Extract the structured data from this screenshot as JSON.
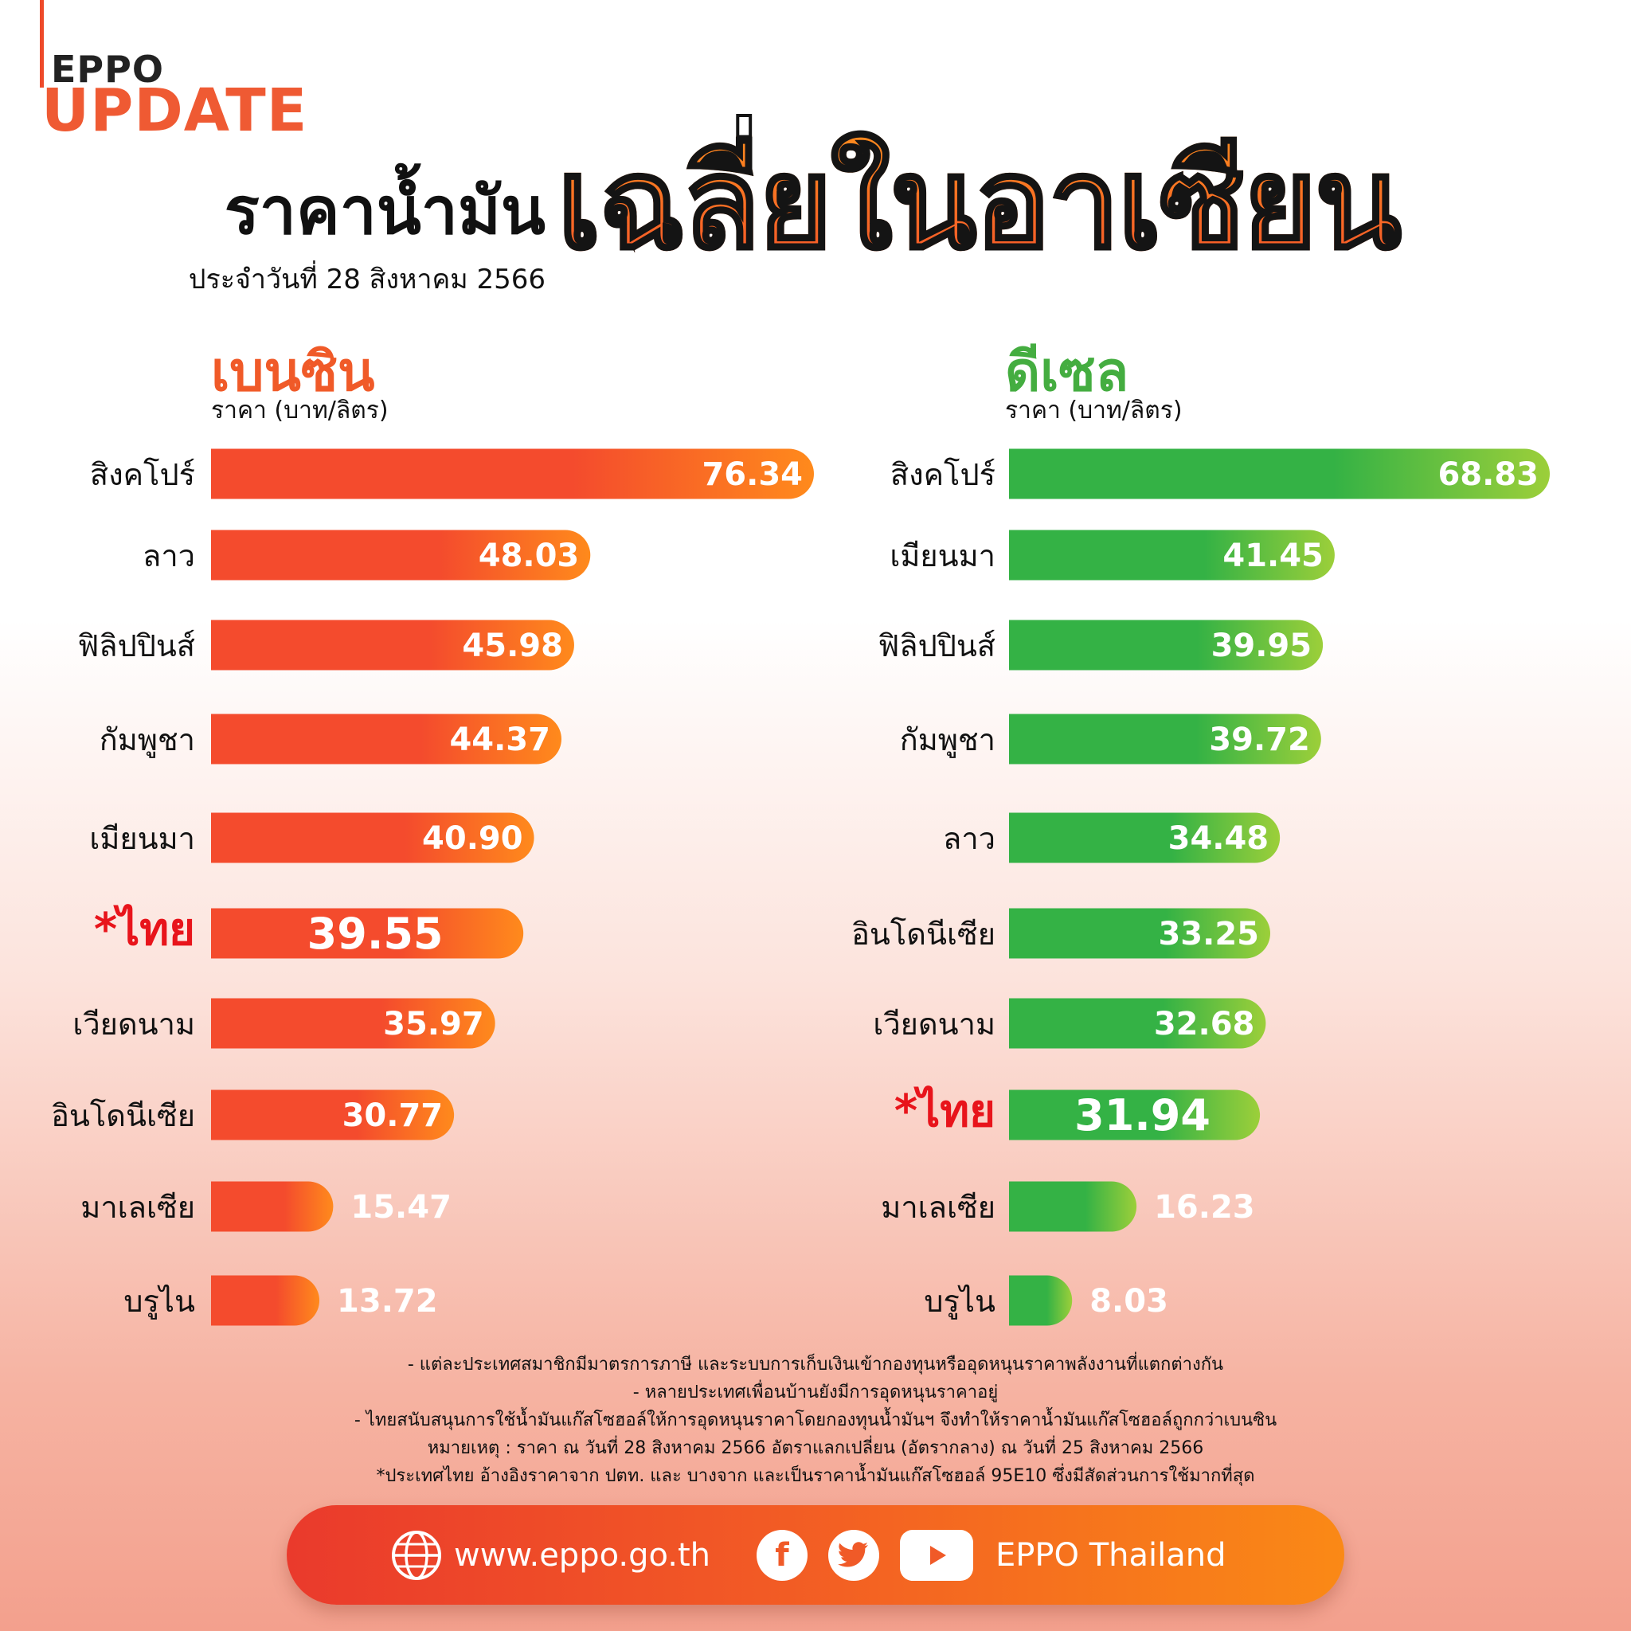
{
  "brand": {
    "eppo": "EPPO",
    "update": "UPDATE"
  },
  "header": {
    "title_main": "ราคาน้ำมัน",
    "title_date": "ประจำวันที่ 28 สิงหาคม 2566",
    "title_big": "เฉลี่ยในอาเซียน"
  },
  "chart_data": [
    {
      "type": "bar",
      "title": "เบนซิน",
      "subtitle": "ราคา (บาท/ลิตร)",
      "categories": [
        "สิงคโปร์",
        "ลาว",
        "ฟิลิปปินส์",
        "กัมพูชา",
        "เมียนมา",
        "*ไทย",
        "เวียดนาม",
        "อินโดนีเซีย",
        "มาเลเซีย",
        "บรูไน"
      ],
      "values": [
        76.34,
        48.03,
        45.98,
        44.37,
        40.9,
        39.55,
        35.97,
        30.77,
        15.47,
        13.72
      ],
      "value_labels": [
        "76.34",
        "48.03",
        "45.98",
        "44.37",
        "40.90",
        "39.55",
        "35.97",
        "30.77",
        "15.47",
        "13.72"
      ],
      "highlight": "*ไทย",
      "colors": {
        "start": "#f44b2d",
        "end": "#ff8a1c",
        "highlight_text": "#e8141b"
      }
    },
    {
      "type": "bar",
      "title": "ดีเซล",
      "subtitle": "ราคา (บาท/ลิตร)",
      "categories": [
        "สิงคโปร์",
        "เมียนมา",
        "ฟิลิปปินส์",
        "กัมพูชา",
        "ลาว",
        "อินโดนีเซีย",
        "เวียดนาม",
        "*ไทย",
        "มาเลเซีย",
        "บรูไน"
      ],
      "values": [
        68.83,
        41.45,
        39.95,
        39.72,
        34.48,
        33.25,
        32.68,
        31.94,
        16.23,
        8.03
      ],
      "value_labels": [
        "68.83",
        "41.45",
        "39.95",
        "39.72",
        "34.48",
        "33.25",
        "32.68",
        "31.94",
        "16.23",
        "8.03"
      ],
      "highlight": "*ไทย",
      "colors": {
        "start": "#34b245",
        "end": "#9ccf3a",
        "highlight_text": "#e8141b"
      }
    }
  ],
  "footnotes": [
    "- แต่ละประเทศสมาชิกมีมาตรการภาษี และระบบการเก็บเงินเข้ากองทุนหรืออุดหนุนราคาพลังงานที่แตกต่างกัน",
    "- หลายประเทศเพื่อนบ้านยังมีการอุดหนุนราคาอยู่",
    "- ไทยสนับสนุนการใช้น้ำมันแก๊สโซฮอล์ให้การอุดหนุนราคาโดยกองทุนน้ำมันฯ จึงทำให้ราคาน้ำมันแก๊สโซฮอล์ถูกกว่าเบนซิน",
    "หมายเหตุ : ราคา ณ วันที่ 28 สิงหาคม 2566 อัตราแลกเปลี่ยน (อัตรากลาง) ณ วันที่ 25 สิงหาคม 2566",
    "*ประเทศไทย อ้างอิงราคาจาก ปตท. และ บางจาก และเป็นราคาน้ำมันแก๊สโซฮอล์ 95E10 ซึ่งมีสัดส่วนการใช้มากที่สุด"
  ],
  "footer": {
    "url": "www.eppo.go.th",
    "facebook_glyph": "f",
    "page_name": "EPPO Thailand",
    "icons": [
      "globe-icon",
      "facebook-icon",
      "twitter-icon",
      "youtube-icon"
    ]
  }
}
